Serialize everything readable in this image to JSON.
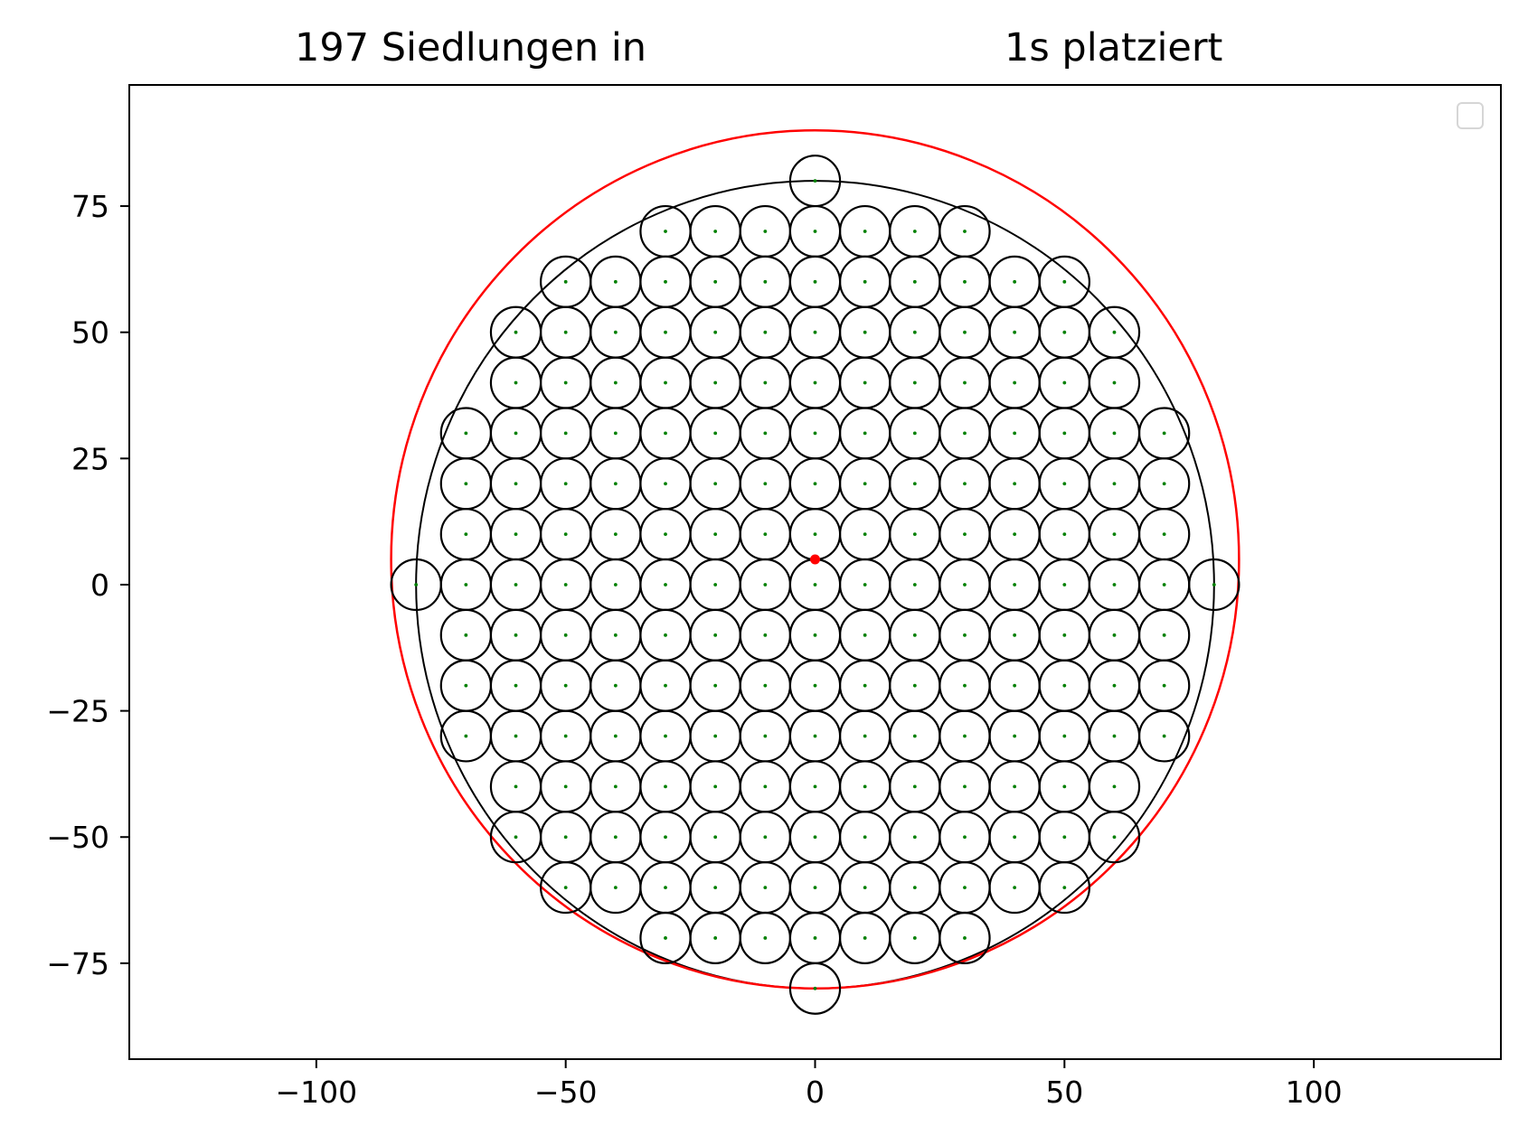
{
  "chart_data": {
    "type": "scatter",
    "title_left": "197 Siedlungen in",
    "title_right": "1s platziert",
    "xlabel": "",
    "ylabel": "",
    "xlim": [
      -137.5,
      137.5
    ],
    "ylim": [
      -94,
      99
    ],
    "x_ticks": [
      -100,
      -50,
      0,
      50,
      100
    ],
    "x_tick_labels": [
      "−100",
      "−50",
      "0",
      "50",
      "100"
    ],
    "y_ticks": [
      75,
      50,
      25,
      0,
      -25,
      -50,
      -75
    ],
    "y_tick_labels": [
      "75",
      "50",
      "25",
      "0",
      "−25",
      "−50",
      "−75"
    ],
    "grid": false,
    "legend": {
      "placement": "top-right",
      "entries": []
    },
    "settlement_radius": 5,
    "settlement_spacing": 10,
    "settlement_count": 197,
    "settlement_rows": [
      {
        "y": 80,
        "x": [
          0
        ]
      },
      {
        "y": 70,
        "x": [
          -30,
          -20,
          -10,
          0,
          10,
          20,
          30
        ]
      },
      {
        "y": 60,
        "x": [
          -50,
          -40,
          -30,
          -20,
          -10,
          0,
          10,
          20,
          30,
          40,
          50
        ]
      },
      {
        "y": 50,
        "x": [
          -60,
          -50,
          -40,
          -30,
          -20,
          -10,
          0,
          10,
          20,
          30,
          40,
          50,
          60
        ]
      },
      {
        "y": 40,
        "x": [
          -60,
          -50,
          -40,
          -30,
          -20,
          -10,
          0,
          10,
          20,
          30,
          40,
          50,
          60
        ]
      },
      {
        "y": 30,
        "x": [
          -70,
          -60,
          -50,
          -40,
          -30,
          -20,
          -10,
          0,
          10,
          20,
          30,
          40,
          50,
          60,
          70
        ]
      },
      {
        "y": 20,
        "x": [
          -70,
          -60,
          -50,
          -40,
          -30,
          -20,
          -10,
          0,
          10,
          20,
          30,
          40,
          50,
          60,
          70
        ]
      },
      {
        "y": 10,
        "x": [
          -70,
          -60,
          -50,
          -40,
          -30,
          -20,
          -10,
          0,
          10,
          20,
          30,
          40,
          50,
          60,
          70
        ]
      },
      {
        "y": 0,
        "x": [
          -80,
          -70,
          -60,
          -50,
          -40,
          -30,
          -20,
          -10,
          0,
          10,
          20,
          30,
          40,
          50,
          60,
          70,
          80
        ]
      },
      {
        "y": -10,
        "x": [
          -70,
          -60,
          -50,
          -40,
          -30,
          -20,
          -10,
          0,
          10,
          20,
          30,
          40,
          50,
          60,
          70
        ]
      },
      {
        "y": -20,
        "x": [
          -70,
          -60,
          -50,
          -40,
          -30,
          -20,
          -10,
          0,
          10,
          20,
          30,
          40,
          50,
          60,
          70
        ]
      },
      {
        "y": -30,
        "x": [
          -70,
          -60,
          -50,
          -40,
          -30,
          -20,
          -10,
          0,
          10,
          20,
          30,
          40,
          50,
          60,
          70
        ]
      },
      {
        "y": -40,
        "x": [
          -60,
          -50,
          -40,
          -30,
          -20,
          -10,
          0,
          10,
          20,
          30,
          40,
          50,
          60
        ]
      },
      {
        "y": -50,
        "x": [
          -60,
          -50,
          -40,
          -30,
          -20,
          -10,
          0,
          10,
          20,
          30,
          40,
          50,
          60
        ]
      },
      {
        "y": -60,
        "x": [
          -50,
          -40,
          -30,
          -20,
          -10,
          0,
          10,
          20,
          30,
          40,
          50
        ]
      },
      {
        "y": -70,
        "x": [
          -30,
          -20,
          -10,
          0,
          10,
          20,
          30
        ]
      },
      {
        "y": -80,
        "x": [
          0
        ]
      }
    ],
    "boundary_circles": [
      {
        "cx": 0,
        "cy": 0,
        "r": 80,
        "color": "#000000"
      },
      {
        "cx": 0,
        "cy": 5,
        "r": 85,
        "color": "#ff0000"
      }
    ],
    "center_point": {
      "x": 0,
      "y": 5,
      "color": "#ff0000"
    },
    "colors": {
      "settlement_circle": "#000000",
      "settlement_center": "#008000",
      "axes": "#000000"
    }
  }
}
